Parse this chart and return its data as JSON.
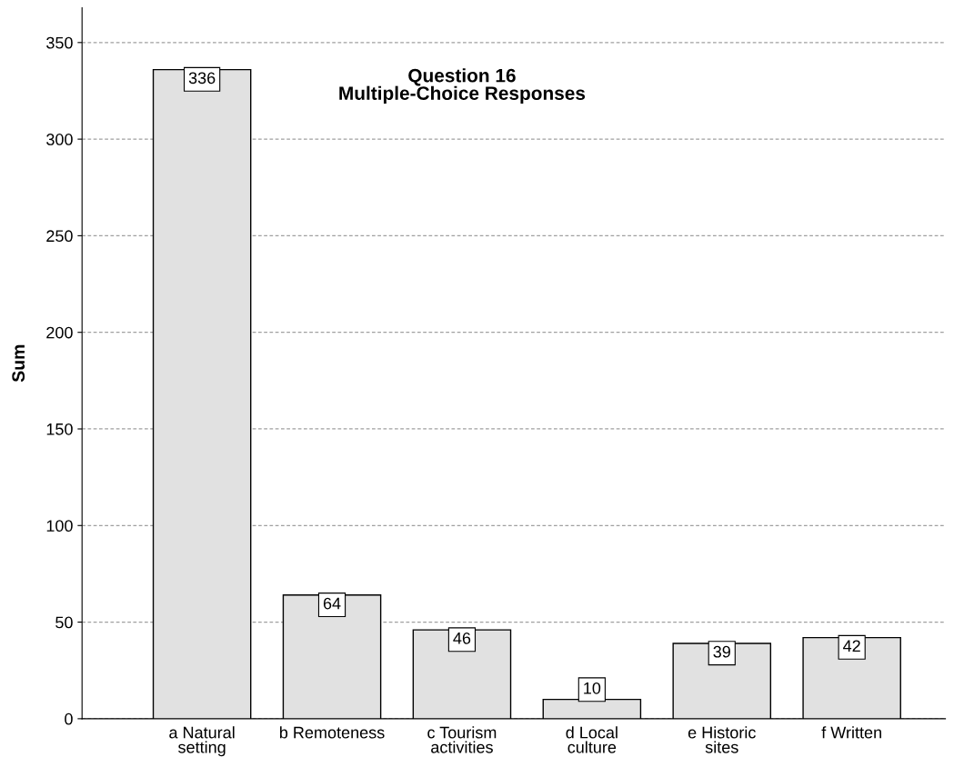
{
  "chart_data": {
    "type": "bar",
    "title": "Question 16\nMultiple-Choice Responses",
    "ylabel": "Sum",
    "categories": [
      "a Natural\nsetting",
      "b Remoteness",
      "c Tourism\nactivities",
      "d Local\nculture",
      "e Historic\nsites",
      "f Written"
    ],
    "values": [
      336,
      64,
      46,
      10,
      39,
      42
    ],
    "color": "#e1e1e1",
    "ylim": [
      0,
      368
    ],
    "yticks": [
      0,
      50,
      100,
      150,
      200,
      250,
      300,
      350
    ],
    "grid": "y",
    "data_labels": true
  }
}
